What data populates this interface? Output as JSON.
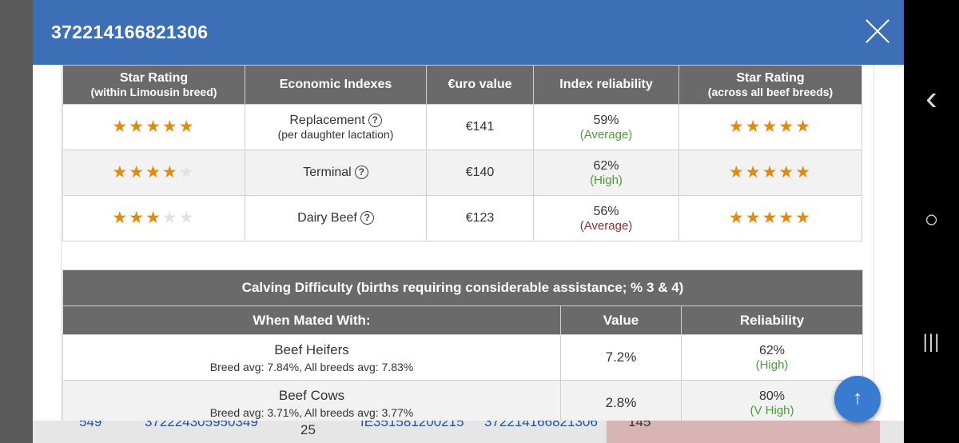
{
  "dialog": {
    "title": "372214166821306",
    "close_label": "×"
  },
  "economic_table": {
    "headers": [
      {
        "main": "Star Rating",
        "sub": "(within Limousin breed)"
      },
      {
        "main": "Economic Indexes",
        "sub": ""
      },
      {
        "main": "€uro value",
        "sub": ""
      },
      {
        "main": "Index reliability",
        "sub": ""
      },
      {
        "main": "Star Rating",
        "sub": "(across all beef breeds)"
      }
    ],
    "rows": [
      {
        "stars_within": 5,
        "index": "Replacement",
        "index_sub": "(per daughter lactation)",
        "value": "€141",
        "reliability": "59%",
        "reliability_label": "(Average)",
        "stars_across": 5
      },
      {
        "stars_within": 4,
        "index": "Terminal",
        "index_sub": "",
        "value": "€140",
        "reliability": "62%",
        "reliability_label": "(High)",
        "stars_across": 5
      },
      {
        "stars_within": 3,
        "index": "Dairy Beef",
        "index_sub": "",
        "value": "€123",
        "reliability": "56%",
        "reliability_label": "(Average)",
        "stars_across": 5
      }
    ]
  },
  "calving_table": {
    "caption": "Calving Difficulty (births requiring considerable assistance; % 3 & 4)",
    "headers": {
      "mated": "When Mated With:",
      "value": "Value",
      "reliability": "Reliability"
    },
    "rows": [
      {
        "name": "Beef Heifers",
        "avg": "Breed avg: 7.84%, All breeds avg: 7.83%",
        "value": "7.2%",
        "reliability": "62%",
        "reliability_label": "(High)"
      },
      {
        "name": "Beef Cows",
        "avg": "Breed avg: 3.71%, All breeds avg: 3.77%",
        "value": "2.8%",
        "reliability": "80%",
        "reliability_label": "(V High)"
      }
    ]
  },
  "background_row": {
    "cells": [
      "549",
      "372224305950349",
      "IE351581200215",
      "372214166821306",
      "145"
    ],
    "below": "25"
  },
  "help_glyph": "?",
  "scroll_top_glyph": "↑",
  "nav": {
    "back": "‹",
    "home": "○",
    "recents": "|||"
  },
  "colors": {
    "header": "#3d6fb6",
    "star": "#e08a10",
    "good": "#4d9b3a",
    "average": "#8b2f2f"
  }
}
